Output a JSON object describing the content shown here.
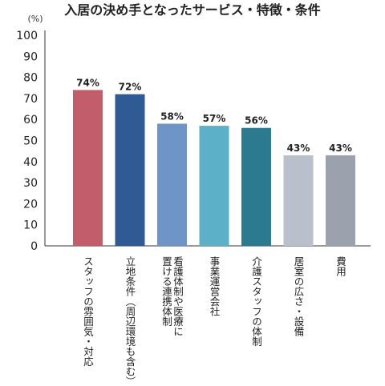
{
  "chart_data": {
    "type": "bar",
    "title": "入居の決め手となったサービス・特徴・条件",
    "unit_label": "(%)",
    "ylim": [
      0,
      100
    ],
    "yticks": [
      0,
      10,
      20,
      30,
      40,
      50,
      60,
      70,
      80,
      90,
      100
    ],
    "grid": false,
    "categories": [
      "スタッフの雰囲気・対応",
      "立地条件（周辺環境も含む）",
      "看護体制や医療に置ける連携体制",
      "事業運営会社",
      "介護スタッフの体制",
      "居室の広さ・設備",
      "費用"
    ],
    "category_lines": [
      [
        "スタッフの雰囲気・対応"
      ],
      [
        "立地条件（周辺環境も含む）"
      ],
      [
        "看護体制や医療に",
        "置ける連携体制"
      ],
      [
        "事業運営会社"
      ],
      [
        "介護スタッフの体制"
      ],
      [
        "居室の広さ・設備"
      ],
      [
        "費用"
      ]
    ],
    "values": [
      74,
      72,
      58,
      57,
      56,
      43,
      43
    ],
    "value_labels": [
      "74%",
      "72%",
      "58%",
      "57%",
      "56%",
      "43%",
      "43%"
    ],
    "colors": [
      "#c25e6c",
      "#2f5a93",
      "#6f95c6",
      "#5cb1c9",
      "#2b7a8f",
      "#b9bfcb",
      "#9ba2ad"
    ]
  }
}
